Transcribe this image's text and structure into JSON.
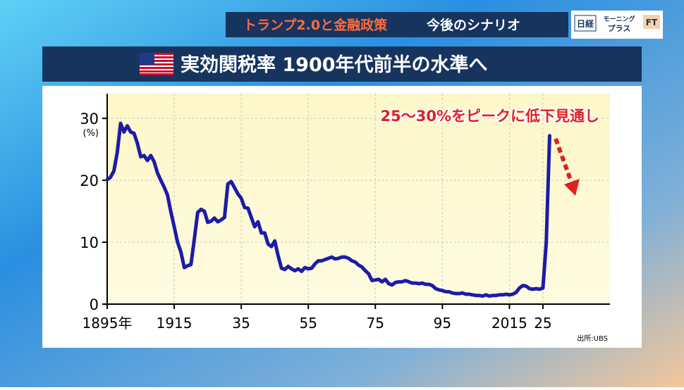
{
  "header": {
    "segment": "トランプ2.0と金融政策",
    "topic": "今後のシナリオ",
    "logo_nikkei": "日経",
    "logo_morning": "モーニング",
    "logo_plus": "プラス",
    "logo_ft": "FT"
  },
  "chart_data": {
    "type": "line",
    "title": "実効関税率 1900年代前半の水準へ",
    "annotation": "25～30%をピークに低下見通し",
    "y_unit": "(%)",
    "source": "出所:UBS",
    "x": [
      1895,
      1896,
      1897,
      1898,
      1899,
      1900,
      1901,
      1902,
      1903,
      1904,
      1905,
      1906,
      1907,
      1908,
      1909,
      1910,
      1911,
      1912,
      1913,
      1914,
      1915,
      1916,
      1917,
      1918,
      1919,
      1920,
      1921,
      1922,
      1923,
      1924,
      1925,
      1926,
      1927,
      1928,
      1929,
      1930,
      1931,
      1932,
      1933,
      1934,
      1935,
      1936,
      1937,
      1938,
      1939,
      1940,
      1941,
      1942,
      1943,
      1944,
      1945,
      1946,
      1947,
      1948,
      1949,
      1950,
      1951,
      1952,
      1953,
      1954,
      1955,
      1956,
      1957,
      1958,
      1959,
      1960,
      1961,
      1962,
      1963,
      1964,
      1965,
      1966,
      1967,
      1968,
      1969,
      1970,
      1971,
      1972,
      1973,
      1974,
      1975,
      1976,
      1977,
      1978,
      1979,
      1980,
      1981,
      1982,
      1983,
      1984,
      1985,
      1986,
      1987,
      1988,
      1989,
      1990,
      1991,
      1992,
      1993,
      1994,
      1995,
      1996,
      1997,
      1998,
      1999,
      2000,
      2001,
      2002,
      2003,
      2004,
      2005,
      2006,
      2007,
      2008,
      2009,
      2010,
      2011,
      2012,
      2013,
      2014,
      2015,
      2016,
      2017,
      2018,
      2019,
      2020,
      2021,
      2022,
      2023,
      2024,
      2025,
      2026,
      2027
    ],
    "values": [
      20.1,
      20.5,
      21.5,
      24.5,
      29.2,
      27.8,
      28.8,
      27.8,
      27.6,
      26.0,
      23.8,
      24.0,
      23.2,
      24.0,
      23.0,
      21.2,
      20.0,
      18.9,
      17.6,
      14.9,
      12.5,
      10.0,
      8.4,
      5.9,
      6.2,
      6.4,
      10.5,
      14.8,
      15.3,
      15.0,
      13.2,
      13.4,
      13.9,
      13.3,
      13.6,
      14.0,
      19.4,
      19.8,
      18.8,
      17.8,
      17.1,
      15.6,
      15.5,
      14.0,
      12.5,
      13.3,
      11.5,
      11.5,
      9.7,
      9.3,
      10.2,
      7.8,
      5.8,
      5.6,
      6.1,
      5.7,
      5.4,
      5.7,
      5.3,
      5.9,
      5.7,
      5.8,
      6.5,
      7.0,
      7.0,
      7.2,
      7.4,
      7.6,
      7.3,
      7.4,
      7.6,
      7.6,
      7.4,
      7.0,
      6.8,
      6.3,
      6.0,
      5.4,
      4.9,
      3.8,
      3.9,
      4.0,
      3.6,
      4.0,
      3.3,
      3.1,
      3.5,
      3.6,
      3.6,
      3.8,
      3.6,
      3.4,
      3.4,
      3.3,
      3.4,
      3.2,
      3.2,
      3.0,
      2.5,
      2.3,
      2.2,
      2.0,
      2.0,
      1.8,
      1.7,
      1.7,
      1.8,
      1.6,
      1.6,
      1.5,
      1.4,
      1.4,
      1.3,
      1.5,
      1.3,
      1.4,
      1.4,
      1.5,
      1.5,
      1.6,
      1.5,
      1.6,
      1.9,
      2.6,
      3.0,
      2.9,
      2.5,
      2.4,
      2.5,
      2.4,
      2.6,
      10.0,
      27.2
    ],
    "color": "#1c1ca6",
    "xlim": [
      1895,
      2045
    ],
    "xticks": [
      {
        "value": 1895,
        "label": "1895年"
      },
      1915,
      {
        "value": 1935,
        "label": "35"
      },
      {
        "value": 1955,
        "label": "55"
      },
      {
        "value": 1975,
        "label": "75"
      },
      {
        "value": 1995,
        "label": "95"
      },
      2015,
      {
        "value": 2025,
        "label": "25"
      }
    ],
    "ylim": [
      0,
      34
    ],
    "yticks": [
      0,
      10,
      20,
      30
    ],
    "grid": true
  }
}
